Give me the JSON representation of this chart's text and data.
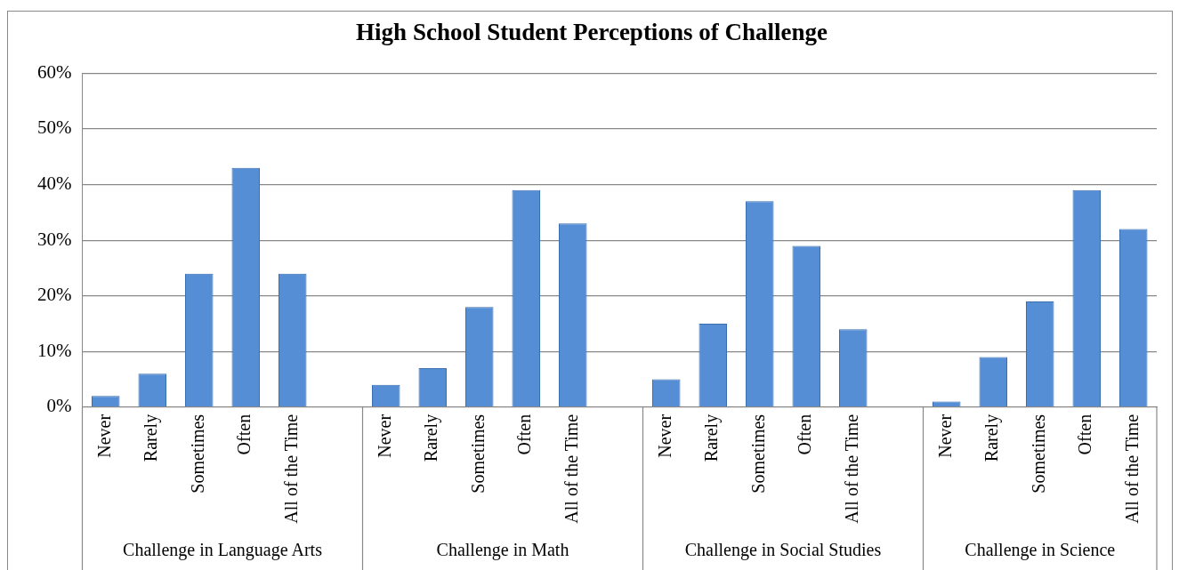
{
  "chart_data": {
    "type": "bar",
    "title": "High School Student Perceptions of Challenge",
    "categories": [
      "Never",
      "Rarely",
      "Sometimes",
      "Often",
      "All of the Time",
      null,
      "Never",
      "Rarely",
      "Sometimes",
      "Often",
      "All of the Time",
      null,
      "Never",
      "Rarely",
      "Sometimes",
      "Often",
      "All of the Time",
      null,
      "Never",
      "Rarely",
      "Sometimes",
      "Often",
      "All of the Time"
    ],
    "values": [
      2,
      6,
      24,
      43,
      24,
      null,
      4,
      7,
      18,
      39,
      33,
      null,
      5,
      15,
      37,
      29,
      14,
      null,
      1,
      9,
      19,
      39,
      32
    ],
    "color": "#558ed5",
    "ylim": [
      0,
      60
    ],
    "yticks": [
      {
        "value": 0,
        "label": "0%"
      },
      {
        "value": 10,
        "label": "10%"
      },
      {
        "value": 20,
        "label": "20%"
      },
      {
        "value": 30,
        "label": "30%"
      },
      {
        "value": 40,
        "label": "40%"
      },
      {
        "value": 50,
        "label": "50%"
      },
      {
        "value": 60,
        "label": "60%"
      }
    ],
    "grid": "y",
    "legend": false,
    "annotations": [
      "Challenge in Language Arts",
      "Challenge in Math",
      "Challenge in Social Studies",
      "Challenge in Science"
    ]
  }
}
